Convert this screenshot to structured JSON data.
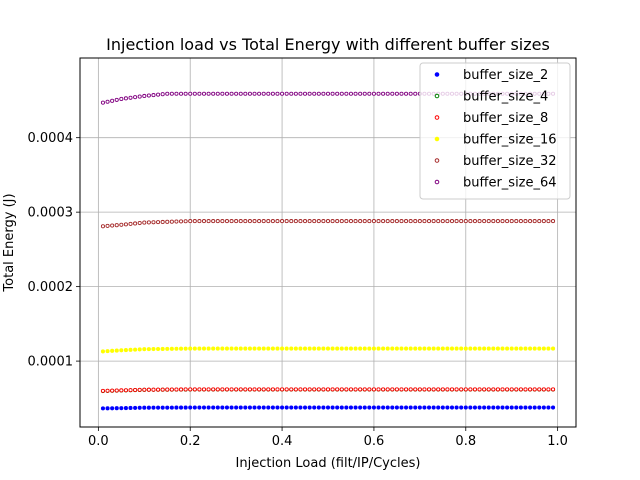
{
  "chart_data": {
    "type": "scatter",
    "title": "Injection load vs Total Energy with different buffer sizes",
    "xlabel": "Injection Load (filt/IP/Cycles)",
    "ylabel": "Total Energy (J)",
    "xlim": [
      -0.04,
      1.04
    ],
    "ylim": [
      1.15e-05,
      0.000507
    ],
    "xticks": [
      0.0,
      0.2,
      0.4,
      0.6,
      0.8,
      1.0
    ],
    "xtick_labels": [
      "0.0",
      "0.2",
      "0.4",
      "0.6",
      "0.8",
      "1.0"
    ],
    "yticks": [
      0.0001,
      0.0002,
      0.0003,
      0.0004
    ],
    "ytick_labels": [
      "0.0001",
      "0.0002",
      "0.0003",
      "0.0004"
    ],
    "grid": true,
    "legend_position": "top-right",
    "x": {
      "start": 0.01,
      "end": 0.99,
      "step": 0.01
    },
    "series": [
      {
        "name": "buffer_size_2",
        "color": "#0000ff",
        "marker": "filled-circle",
        "curve": [
          [
            0.01,
            3.65e-05
          ],
          [
            0.05,
            3.68e-05
          ],
          [
            0.1,
            3.74e-05
          ],
          [
            0.2,
            3.76e-05
          ],
          [
            0.99,
            3.76e-05
          ]
        ]
      },
      {
        "name": "buffer_size_4",
        "color": "#008000",
        "marker": "hollow-circle",
        "curve": [
          [
            0.01,
            5.98e-05
          ],
          [
            0.05,
            6.05e-05
          ],
          [
            0.1,
            6.14e-05
          ],
          [
            0.2,
            6.18e-05
          ],
          [
            0.99,
            6.18e-05
          ]
        ]
      },
      {
        "name": "buffer_size_8",
        "color": "#ff0000",
        "marker": "hollow-circle",
        "curve": [
          [
            0.01,
            6e-05
          ],
          [
            0.05,
            6.07e-05
          ],
          [
            0.1,
            6.15e-05
          ],
          [
            0.2,
            6.2e-05
          ],
          [
            0.99,
            6.2e-05
          ]
        ]
      },
      {
        "name": "buffer_size_16",
        "color": "#ffff00",
        "marker": "filled-circle",
        "curve": [
          [
            0.01,
            0.000113
          ],
          [
            0.05,
            0.0001145
          ],
          [
            0.1,
            0.000116
          ],
          [
            0.2,
            0.0001168
          ],
          [
            0.99,
            0.0001168
          ]
        ]
      },
      {
        "name": "buffer_size_32",
        "color": "#a52a2a",
        "marker": "hollow-circle",
        "curve": [
          [
            0.01,
            0.000281
          ],
          [
            0.05,
            0.000283
          ],
          [
            0.1,
            0.000286
          ],
          [
            0.2,
            0.000288
          ],
          [
            0.99,
            0.000288
          ]
        ]
      },
      {
        "name": "buffer_size_64",
        "color": "#800080",
        "marker": "hollow-circle",
        "curve": [
          [
            0.01,
            0.000447
          ],
          [
            0.05,
            0.000452
          ],
          [
            0.1,
            0.000456
          ],
          [
            0.15,
            0.000459
          ],
          [
            0.99,
            0.000459
          ]
        ]
      }
    ]
  }
}
